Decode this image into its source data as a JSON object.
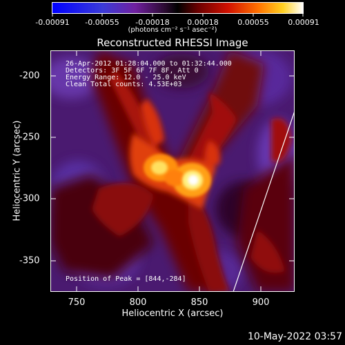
{
  "colorbar": {
    "tick_labels": [
      "-0.00091",
      "-0.00055",
      "-0.00018",
      "0.00018",
      "0.00055",
      "0.00091"
    ],
    "units": "(photons cm⁻² s⁻¹ asec⁻²)"
  },
  "title": "Reconstructed RHESSI Image",
  "info": {
    "line1": "26-Apr-2012 01:28:04.000 to 01:32:44.000",
    "line2": "Detectors: 3F 5F 6F 7F 8F, Att 0",
    "line3": "Energy Range: 12.0 - 25.0 keV",
    "line4": "Clean     Total counts: 4.53E+03"
  },
  "peak_label": "Position of Peak = [844,-284]",
  "axes": {
    "x_label": "Heliocentric X (arcsec)",
    "y_label": "Heliocentric Y (arcsec)",
    "x_ticks": [
      "750",
      "800",
      "850",
      "900"
    ],
    "y_ticks": [
      "-200",
      "-250",
      "-300",
      "-350"
    ]
  },
  "timestamp": "10-May-2022 03:57"
}
